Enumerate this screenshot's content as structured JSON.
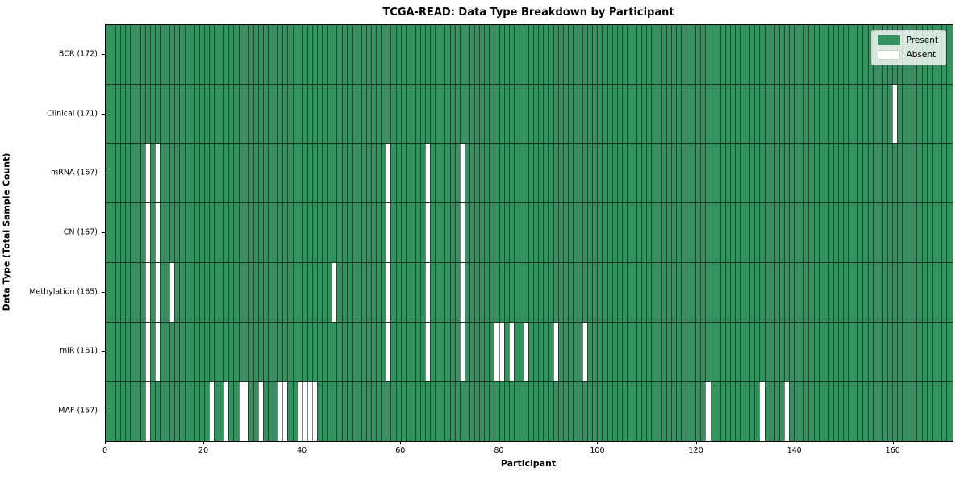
{
  "title": "TCGA-READ: Data Type Breakdown by Participant",
  "xlabel": "Participant",
  "ylabel": "Data Type (Total Sample Count)",
  "legend": {
    "present_label": "Present",
    "absent_label": "Absent"
  },
  "colors": {
    "present": "#35925e",
    "absent": "#ffffff",
    "gridline": "rgba(0,0,0,0.5)",
    "legend_border": "#cccccc"
  },
  "chart_data": {
    "type": "heatmap",
    "n_participants": 172,
    "x_axis_range": [
      0,
      172
    ],
    "x_ticks": [
      0,
      20,
      40,
      60,
      80,
      100,
      120,
      140,
      160
    ],
    "grid": true,
    "legend_position": "upper right",
    "rows": [
      {
        "label": "BCR (172)",
        "data_type": "BCR",
        "present_count": 172,
        "absent_participants": []
      },
      {
        "label": "Clinical (171)",
        "data_type": "Clinical",
        "present_count": 171,
        "absent_participants": [
          160
        ]
      },
      {
        "label": "mRNA (167)",
        "data_type": "mRNA",
        "present_count": 167,
        "absent_participants": [
          8,
          10,
          57,
          65,
          72
        ]
      },
      {
        "label": "CN (167)",
        "data_type": "CN",
        "present_count": 167,
        "absent_participants": [
          8,
          10,
          57,
          65,
          72
        ]
      },
      {
        "label": "Methylation (165)",
        "data_type": "Methylation",
        "present_count": 165,
        "absent_participants": [
          8,
          10,
          13,
          46,
          57,
          65,
          72
        ]
      },
      {
        "label": "miR (161)",
        "data_type": "miR",
        "present_count": 161,
        "absent_participants": [
          8,
          10,
          57,
          65,
          72,
          79,
          80,
          82,
          85,
          91,
          97
        ]
      },
      {
        "label": "MAF (157)",
        "data_type": "MAF",
        "present_count": 157,
        "absent_participants": [
          8,
          21,
          24,
          27,
          28,
          31,
          35,
          36,
          39,
          40,
          41,
          42,
          122,
          133,
          138
        ]
      }
    ]
  }
}
